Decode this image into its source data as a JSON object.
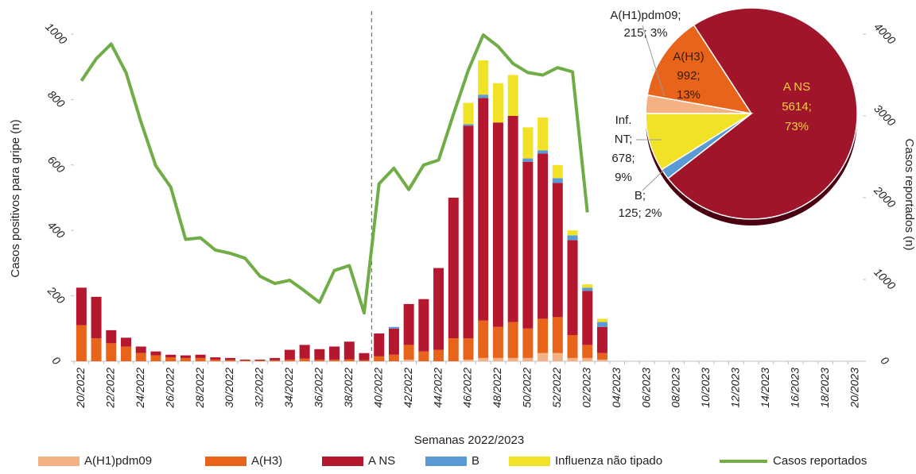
{
  "chart_data": [
    {
      "type": "bar",
      "stacked": true,
      "x_label": "Semanas 2022/2023",
      "y_label": "Casos positivos para gripe (n)",
      "y2_label": "Casos reportados (n)",
      "categories": [
        "20/2022",
        null,
        "22/2022",
        null,
        "24/2022",
        null,
        "26/2022",
        null,
        "28/2022",
        null,
        "30/2022",
        null,
        "32/2022",
        null,
        "34/2022",
        null,
        "36/2022",
        null,
        "38/2022",
        null,
        "40/2022",
        null,
        "42/2022",
        null,
        "44/2022",
        null,
        "46/2022",
        null,
        "48/2022",
        null,
        "50/2022",
        null,
        "52/2022",
        null,
        "02/2023",
        null,
        "04/2023",
        null,
        "06/2023",
        null,
        "08/2023",
        null,
        "10/2023",
        null,
        "12/2023",
        null,
        "14/2023",
        null,
        "16/2023",
        null,
        "18/2023",
        null,
        "20/2023"
      ],
      "ylim": [
        0,
        1000
      ],
      "yticks": [
        0,
        200,
        400,
        600,
        800,
        1000
      ],
      "y2lim": [
        0,
        4000
      ],
      "y2ticks": [
        0,
        1000,
        2000,
        3000,
        4000
      ],
      "series": [
        {
          "name": "A(H1)pdm09",
          "color": "#f4b183",
          "values": [
            0,
            0,
            0,
            0,
            0,
            0,
            0,
            0,
            0,
            0,
            0,
            0,
            0,
            0,
            0,
            0,
            0,
            0,
            0,
            0,
            0,
            0,
            5,
            0,
            0,
            0,
            5,
            10,
            10,
            10,
            10,
            25,
            25,
            10,
            10,
            5,
            null,
            null,
            null,
            null,
            null,
            null,
            null,
            null,
            null,
            null,
            null,
            null,
            null,
            null,
            null,
            null,
            null
          ]
        },
        {
          "name": "A(H3)",
          "color": "#e8641b",
          "values": [
            110,
            70,
            55,
            45,
            25,
            18,
            12,
            10,
            10,
            5,
            4,
            2,
            2,
            3,
            5,
            8,
            5,
            5,
            6,
            3,
            15,
            20,
            45,
            30,
            35,
            70,
            65,
            115,
            95,
            110,
            90,
            105,
            110,
            70,
            40,
            20,
            null,
            null,
            null,
            null,
            null,
            null,
            null,
            null,
            null,
            null,
            null,
            null,
            null,
            null,
            null,
            null,
            null
          ]
        },
        {
          "name": "A NS",
          "color": "#b5172f",
          "values": [
            115,
            127,
            40,
            27,
            20,
            12,
            8,
            8,
            10,
            7,
            6,
            3,
            3,
            7,
            30,
            42,
            32,
            40,
            54,
            22,
            70,
            80,
            125,
            160,
            250,
            430,
            650,
            680,
            625,
            630,
            510,
            505,
            410,
            290,
            165,
            80,
            null,
            null,
            null,
            null,
            null,
            null,
            null,
            null,
            null,
            null,
            null,
            null,
            null,
            null,
            null,
            null,
            null
          ]
        },
        {
          "name": "B",
          "color": "#5b9bd5",
          "values": [
            0,
            0,
            0,
            0,
            0,
            0,
            0,
            0,
            0,
            0,
            0,
            0,
            0,
            0,
            0,
            0,
            0,
            0,
            0,
            0,
            0,
            5,
            0,
            0,
            0,
            0,
            5,
            10,
            0,
            0,
            10,
            10,
            15,
            15,
            10,
            15,
            null,
            null,
            null,
            null,
            null,
            null,
            null,
            null,
            null,
            null,
            null,
            null,
            null,
            null,
            null,
            null,
            null
          ]
        },
        {
          "name": "Influenza não tipado",
          "color": "#f2e227",
          "values": [
            0,
            0,
            0,
            0,
            0,
            0,
            0,
            0,
            0,
            0,
            0,
            0,
            0,
            0,
            0,
            0,
            0,
            0,
            0,
            0,
            0,
            0,
            0,
            0,
            0,
            0,
            65,
            105,
            120,
            125,
            95,
            100,
            40,
            15,
            10,
            10,
            null,
            null,
            null,
            null,
            null,
            null,
            null,
            null,
            null,
            null,
            null,
            null,
            null,
            null,
            null,
            null,
            null
          ]
        },
        {
          "name": "Casos reportados",
          "type": "line",
          "axis": "y2",
          "color": "#70ad47",
          "values": [
            3430,
            3700,
            3880,
            3530,
            2930,
            2390,
            2130,
            1490,
            1510,
            1360,
            1320,
            1260,
            1040,
            950,
            990,
            860,
            720,
            1110,
            1170,
            590,
            2170,
            2360,
            2100,
            2400,
            2460,
            3020,
            3560,
            3990,
            3850,
            3640,
            3530,
            3500,
            3590,
            3540,
            1820,
            null,
            null,
            null,
            null,
            null,
            null,
            null,
            null,
            null,
            null,
            null,
            null,
            null,
            null,
            null,
            null,
            null,
            null
          ]
        }
      ]
    },
    {
      "type": "pie",
      "values": [
        215,
        992,
        5614,
        125,
        678
      ],
      "value_labels": [
        [
          "A(H1)pdm09;",
          "215; 3%"
        ],
        [
          "A(H3)",
          "992;",
          "13%"
        ],
        [
          "A NS",
          "5614;",
          "73%"
        ],
        [
          "B;",
          "125; 2%"
        ],
        [
          "Inf.",
          "NT;",
          "678;",
          "9%"
        ]
      ],
      "colors": [
        "#f4b183",
        "#e8641b",
        "#a0152a",
        "#5b9bd5",
        "#f2e227"
      ]
    }
  ]
}
